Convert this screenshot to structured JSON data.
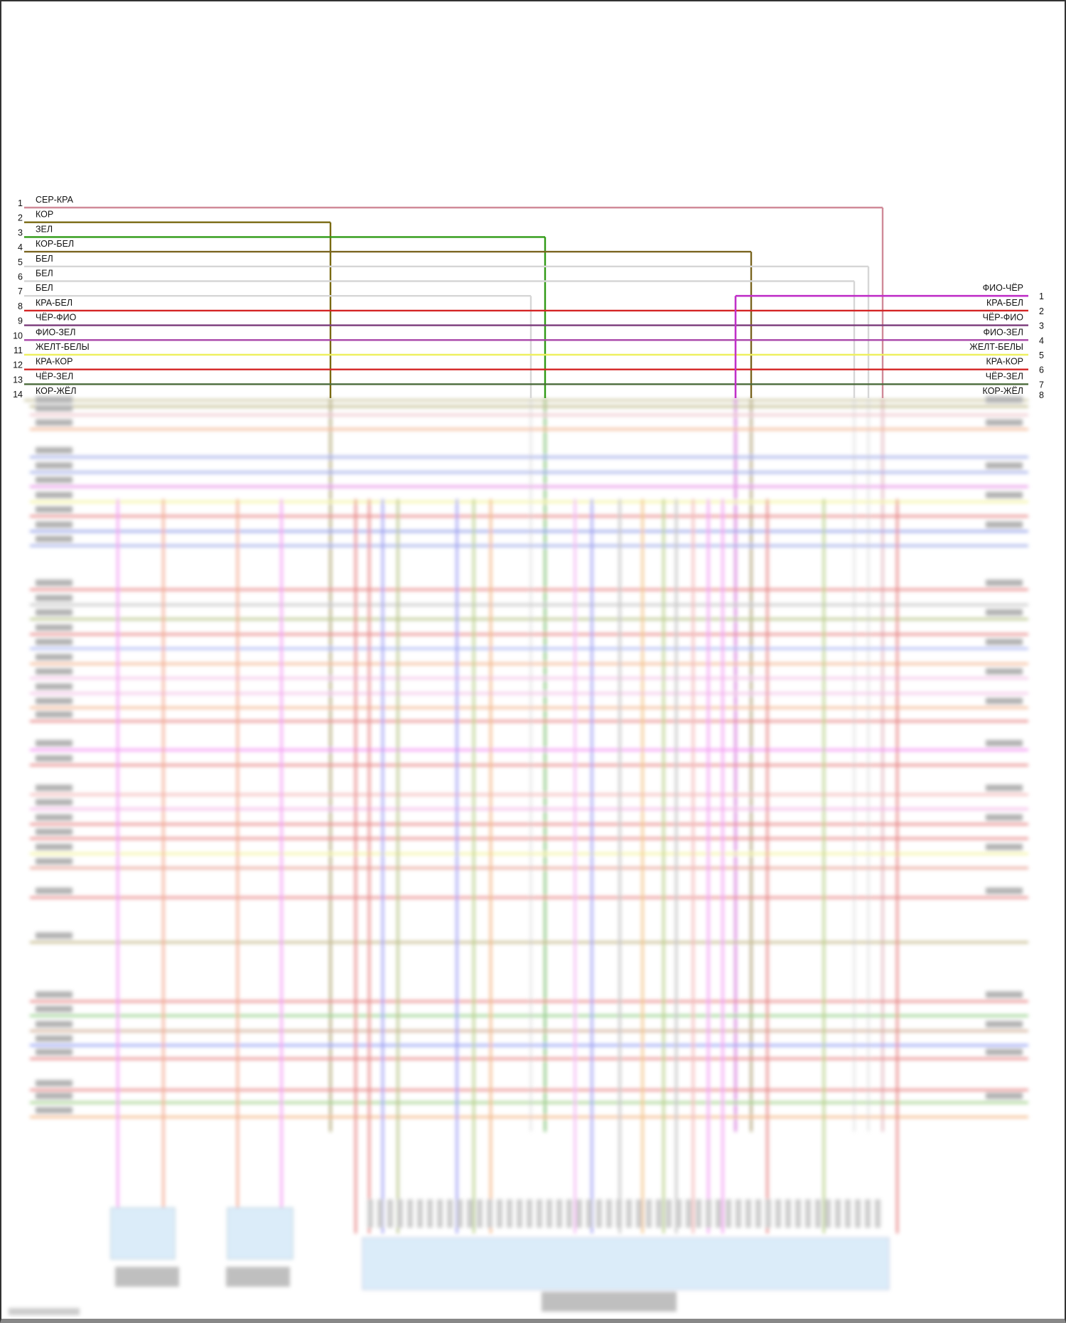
{
  "left_connector": {
    "rows": [
      {
        "pin": "1",
        "label": "СЕР-КРА",
        "color": "#d08a98"
      },
      {
        "pin": "2",
        "label": "КОР",
        "color": "#7a6a12"
      },
      {
        "pin": "3",
        "label": "ЗЕЛ",
        "color": "#2f9a14"
      },
      {
        "pin": "4",
        "label": "КОР-БЕЛ",
        "color": "#7a6520"
      },
      {
        "pin": "5",
        "label": "БЕЛ",
        "color": "#d6d6d6"
      },
      {
        "pin": "6",
        "label": "БЕЛ",
        "color": "#d6d6d6"
      },
      {
        "pin": "7",
        "label": "БЕЛ",
        "color": "#d6d6d6"
      },
      {
        "pin": "8",
        "label": "КРА-БЕЛ",
        "color": "#d42424"
      },
      {
        "pin": "9",
        "label": "ЧЁР-ФИО",
        "color": "#7a3a7a"
      },
      {
        "pin": "10",
        "label": "ФИО-ЗЕЛ",
        "color": "#a844a8"
      },
      {
        "pin": "11",
        "label": "ЖЕЛТ-БЕЛЫ",
        "color": "#eef060"
      },
      {
        "pin": "12",
        "label": "КРА-КОР",
        "color": "#d42424"
      },
      {
        "pin": "13",
        "label": "ЧЁР-ЗЕЛ",
        "color": "#4a6a3a"
      },
      {
        "pin": "14",
        "label": "КОР-ЖЁЛ",
        "color": "#a8a060"
      }
    ]
  },
  "right_connector": {
    "rows": [
      {
        "pin": "1",
        "label": "ФИО-ЧЁР",
        "color": "#c030c8"
      },
      {
        "pin": "2",
        "label": "КРА-БЕЛ",
        "color": "#d42424"
      },
      {
        "pin": "3",
        "label": "ЧЁР-ФИО",
        "color": "#7a3a7a"
      },
      {
        "pin": "4",
        "label": "ФИО-ЗЕЛ",
        "color": "#a844a8"
      },
      {
        "pin": "5",
        "label": "ЖЕЛТ-БЕЛЫ",
        "color": "#eef060"
      },
      {
        "pin": "6",
        "label": "КРА-КОР",
        "color": "#d42424"
      },
      {
        "pin": "7",
        "label": "ЧЁР-ЗЕЛ",
        "color": "#4a6a3a"
      },
      {
        "pin": "8",
        "label": "КОР-ЖЁЛ",
        "color": "#a8a060"
      }
    ]
  },
  "blurred_region": {
    "component_fill": "#cfe6f8"
  }
}
